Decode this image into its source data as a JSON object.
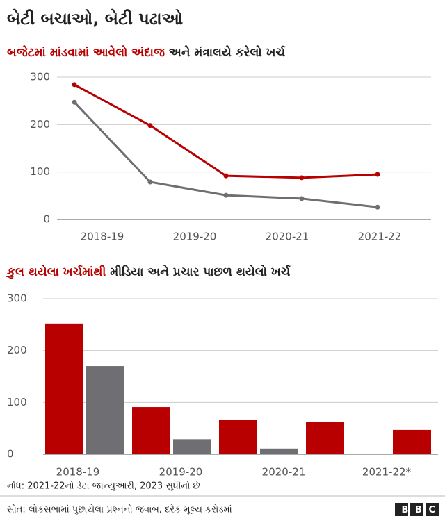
{
  "title": "બેટી બચાઓ, બેટી પઢાઓ",
  "chart_data": [
    {
      "type": "line",
      "subtitle_joiner": "અને",
      "categories": [
        "2018-19",
        "2019-20",
        "2020-21",
        "2021-22",
        null
      ],
      "series": [
        {
          "name": "બજેટમાં માંડવામાં આવેલો અંદાજ",
          "color": "#b80000",
          "values": [
            284,
            198,
            92,
            88,
            95
          ]
        },
        {
          "name": "મંત્રાલયે કરેલો ખર્ચ",
          "color": "#6e6e73",
          "values": [
            247,
            79,
            51,
            44,
            26
          ]
        }
      ],
      "ylim": [
        0,
        300
      ],
      "yticks": [
        0,
        100,
        200,
        300
      ],
      "grid": true
    },
    {
      "type": "bar",
      "categories": [
        "2018-19",
        "2019-20",
        "2020-21",
        "2021-22*",
        null
      ],
      "series": [
        {
          "name": "કુલ થયેલા ખર્ચમાંથી",
          "color": "#b80000",
          "values": [
            252,
            91,
            66,
            62,
            47
          ]
        },
        {
          "name": "મીડિયા અને પ્રચાર પાછળ થયેલો ખર્ચ",
          "color": "#6e6e73",
          "values": [
            170,
            29,
            11,
            null,
            null
          ]
        }
      ],
      "ylim": [
        0,
        300
      ],
      "yticks": [
        0,
        100,
        200,
        300
      ],
      "grid": true
    }
  ],
  "note": "નોંધ: 2021-22નો ડેટા જાન્યુઆરી, 2023 સુધીનો છે",
  "source": "સોત: લોકસભામાં પુછાયેલા પ્રશ્નનો જવાબ, દરેક મૂલ્ય કરોડમાં",
  "logo": "BBC"
}
